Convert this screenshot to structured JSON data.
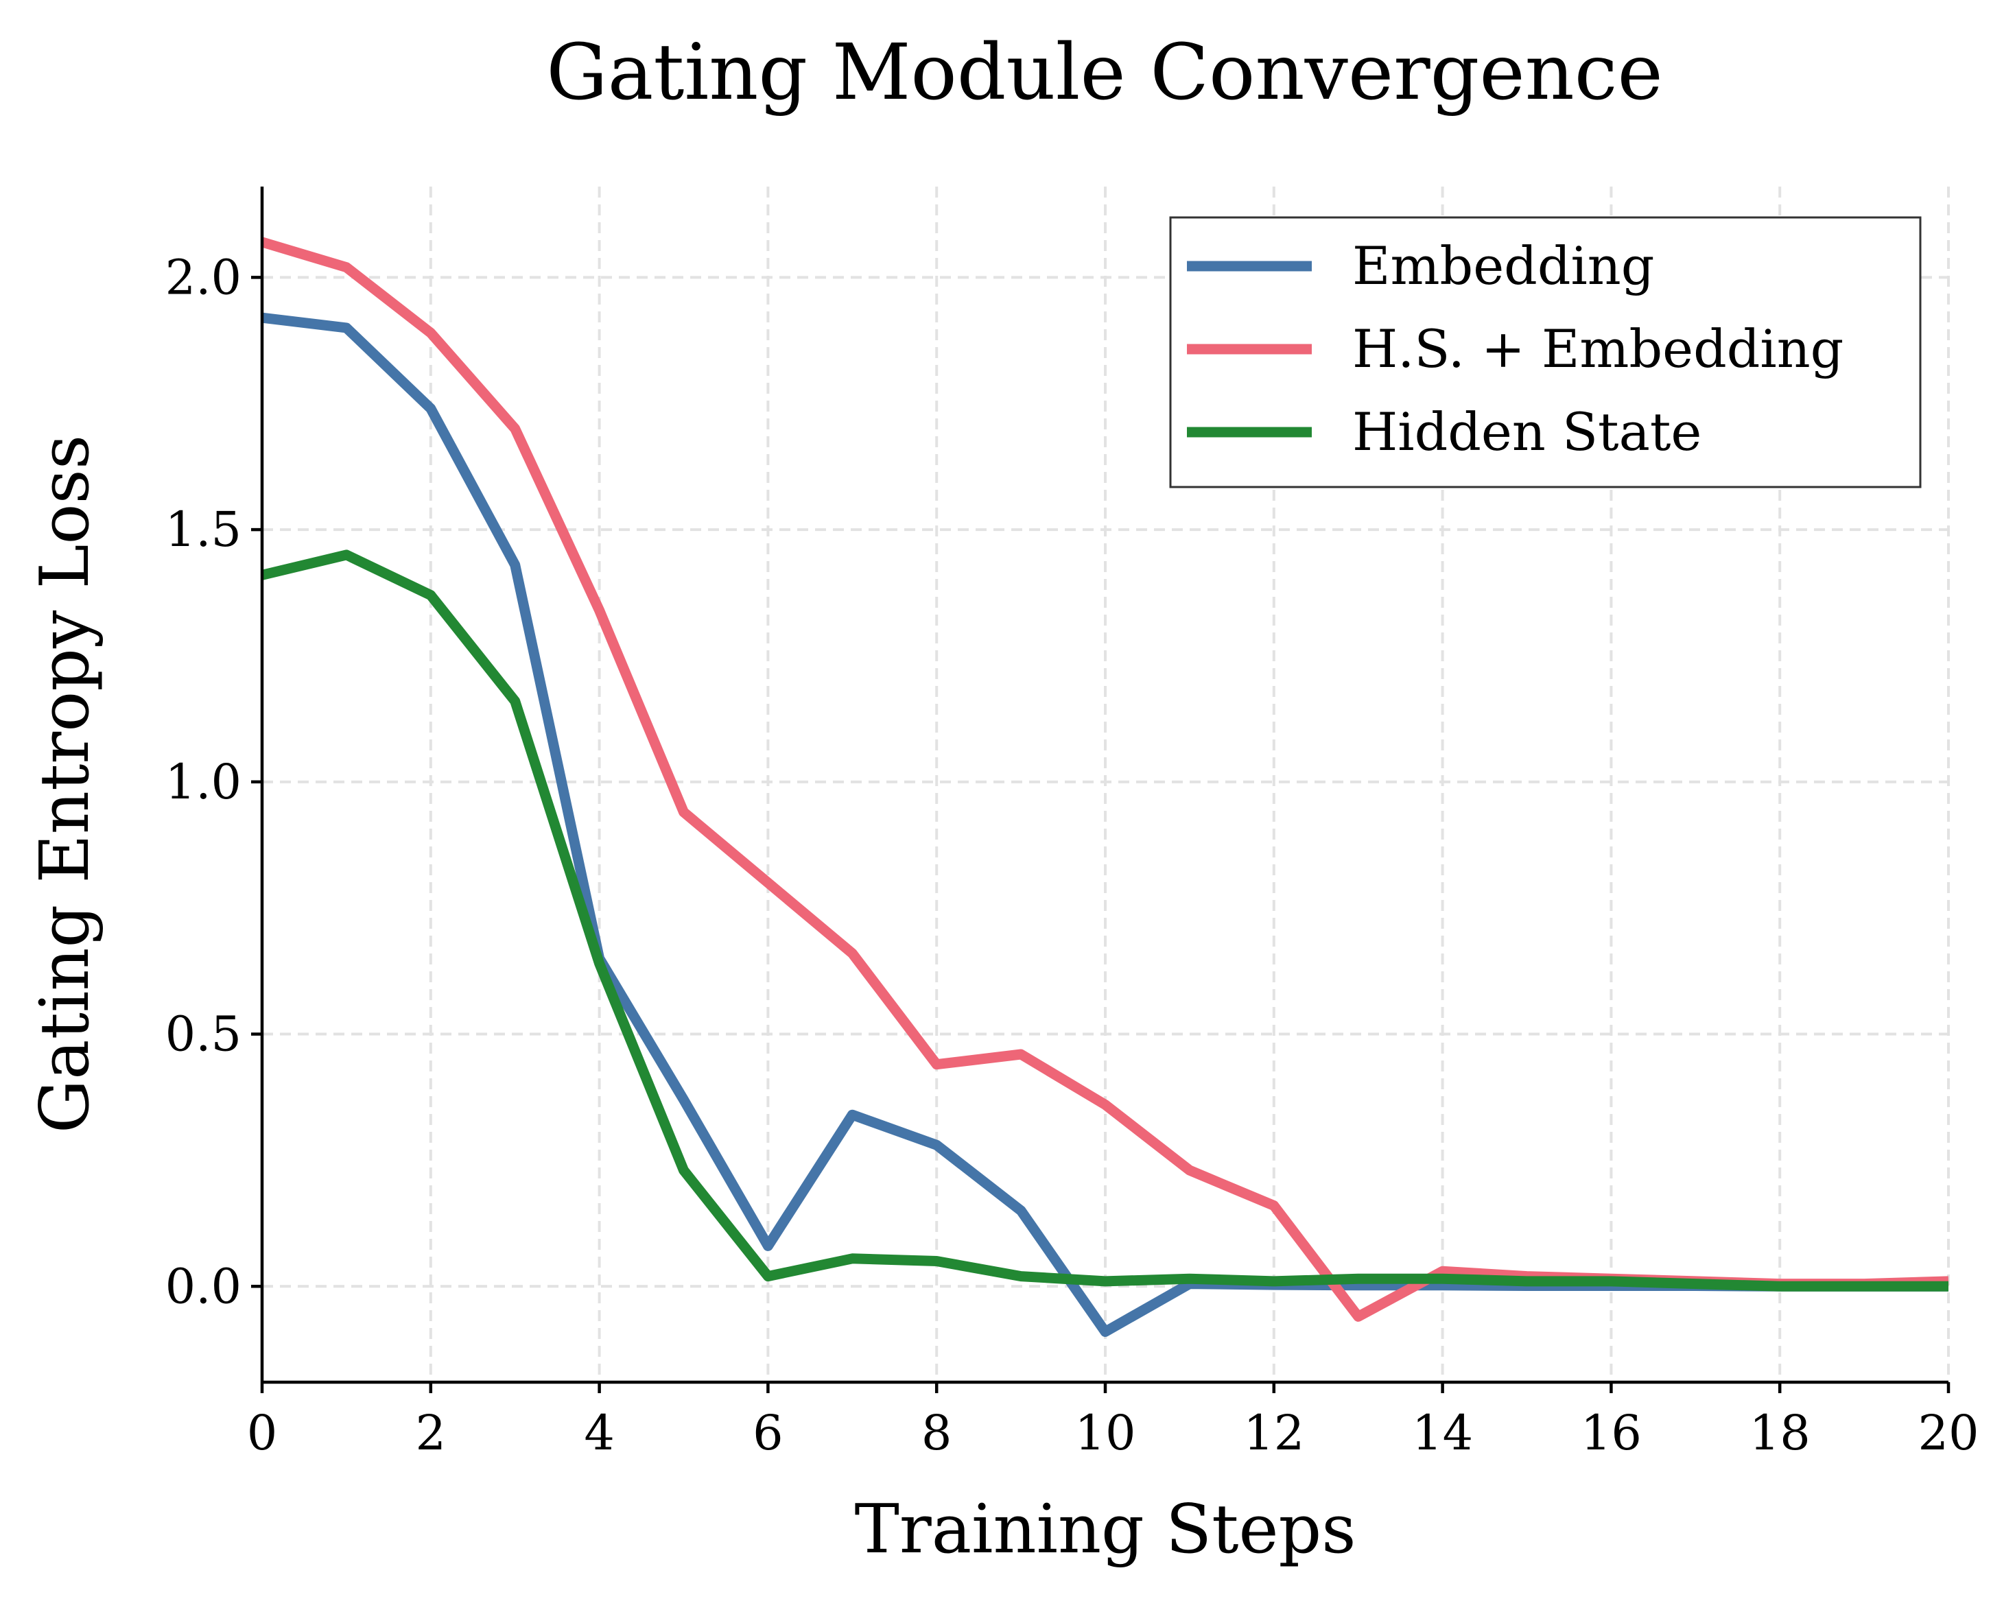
{
  "chart_data": {
    "type": "line",
    "title": "Gating Module Convergence",
    "xlabel": "Training Steps",
    "ylabel": "Gating Entropy Loss",
    "xlim": [
      0,
      20
    ],
    "ylim": [
      -0.19,
      2.18
    ],
    "xticks": [
      0,
      2,
      4,
      6,
      8,
      10,
      12,
      14,
      16,
      18,
      20
    ],
    "xtick_labels": [
      "0",
      "2",
      "4",
      "6",
      "8",
      "10",
      "12",
      "14",
      "16",
      "18",
      "20"
    ],
    "yticks": [
      0.0,
      0.5,
      1.0,
      1.5,
      2.0
    ],
    "ytick_labels": [
      "0.0",
      "0.5",
      "1.0",
      "1.5",
      "2.0"
    ],
    "grid": true,
    "legend_position": "top-right",
    "x": [
      0,
      1,
      2,
      3,
      4,
      5,
      6,
      7,
      8,
      9,
      10,
      11,
      12,
      13,
      14,
      15,
      16,
      17,
      18,
      19,
      20
    ],
    "series": [
      {
        "name": "Embedding",
        "color": "#4575a8",
        "values": [
          1.92,
          1.9,
          1.74,
          1.43,
          0.65,
          0.37,
          0.08,
          0.34,
          0.28,
          0.15,
          -0.09,
          0.005,
          0.003,
          0.002,
          0.002,
          0.001,
          0.001,
          0.001,
          0.0,
          0.0,
          0.0
        ]
      },
      {
        "name": "H.S. + Embedding",
        "color": "#ee6677",
        "values": [
          2.07,
          2.02,
          1.89,
          1.7,
          1.34,
          0.94,
          0.8,
          0.66,
          0.44,
          0.46,
          0.36,
          0.23,
          0.16,
          -0.06,
          0.03,
          0.02,
          0.015,
          0.01,
          0.005,
          0.005,
          0.01
        ]
      },
      {
        "name": "Hidden State",
        "color": "#228833",
        "values": [
          1.41,
          1.45,
          1.37,
          1.16,
          0.64,
          0.23,
          0.02,
          0.055,
          0.05,
          0.02,
          0.01,
          0.015,
          0.01,
          0.015,
          0.015,
          0.01,
          0.01,
          0.005,
          0.0,
          0.0,
          0.0
        ]
      }
    ]
  }
}
